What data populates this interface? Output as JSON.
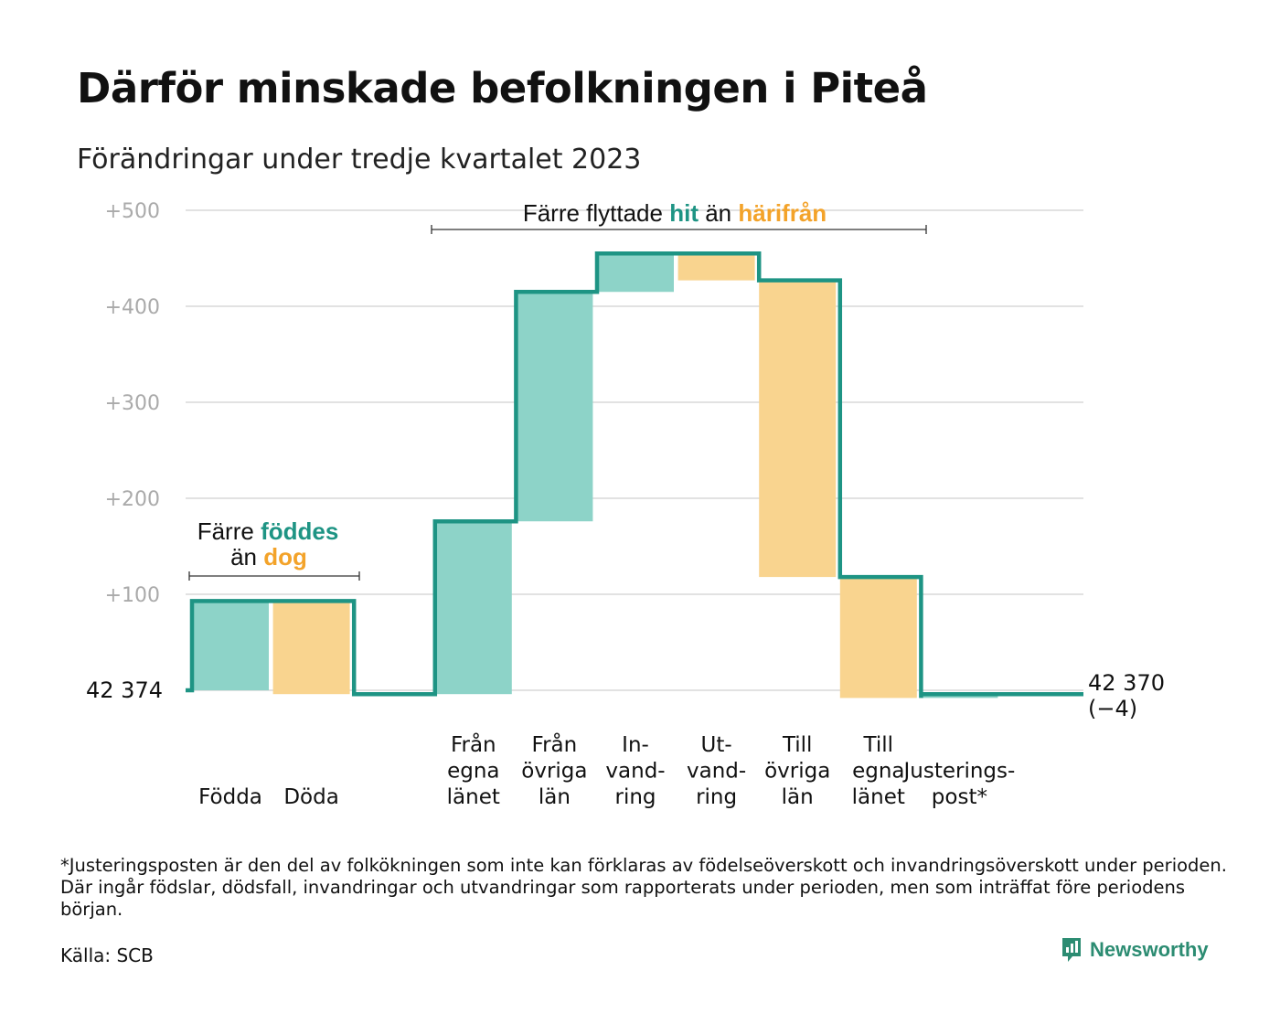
{
  "header": {
    "title": "Därför minskade befolkningen i Piteå",
    "subtitle": "Förändringar under tredje kvartalet 2023"
  },
  "chart_data": {
    "type": "waterfall",
    "base_population": "42 374",
    "end_label_line1": "42 370",
    "end_label_line2": "(−4)",
    "ylim": [
      -15,
      505
    ],
    "y_ticks": [
      {
        "value": 100,
        "label": "+100"
      },
      {
        "value": 200,
        "label": "+200"
      },
      {
        "value": 300,
        "label": "+300"
      },
      {
        "value": 400,
        "label": "+400"
      },
      {
        "value": 500,
        "label": "+500"
      }
    ],
    "steps": [
      {
        "key": "fodda",
        "label": [
          "Födda"
        ],
        "start": 0,
        "end": 93,
        "kind": "increase"
      },
      {
        "key": "doda",
        "label": [
          "Döda"
        ],
        "start": 93,
        "end": -4,
        "kind": "decrease"
      },
      {
        "key": "gap",
        "label": [],
        "start": -4,
        "end": -4,
        "kind": "none"
      },
      {
        "key": "fran-egna-lanet",
        "label": [
          "Från",
          "egna",
          "länet"
        ],
        "start": -4,
        "end": 176,
        "kind": "increase"
      },
      {
        "key": "fran-ovriga-lan",
        "label": [
          "Från",
          "övriga",
          "län"
        ],
        "start": 176,
        "end": 415,
        "kind": "increase"
      },
      {
        "key": "invandring",
        "label": [
          "In-",
          "vand-",
          "ring"
        ],
        "start": 415,
        "end": 455,
        "kind": "increase"
      },
      {
        "key": "utvandring",
        "label": [
          "Ut-",
          "vand-",
          "ring"
        ],
        "start": 455,
        "end": 427,
        "kind": "decrease"
      },
      {
        "key": "till-ovriga-lan",
        "label": [
          "Till",
          "övriga",
          "län"
        ],
        "start": 427,
        "end": 118,
        "kind": "decrease"
      },
      {
        "key": "till-egna-lanet",
        "label": [
          "Till",
          "egna",
          "länet"
        ],
        "start": 118,
        "end": -8,
        "kind": "decrease"
      },
      {
        "key": "justeringspost",
        "label": [
          "Justerings-",
          "post*"
        ],
        "start": -8,
        "end": -4,
        "kind": "increase"
      }
    ],
    "annotation_births": {
      "prefix": "Färre",
      "highlight_a": "föddes",
      "middle": "än",
      "highlight_b": "dog"
    },
    "annotation_migration": {
      "prefix": "Färre flyttade",
      "highlight_a": "hit",
      "middle": "än",
      "highlight_b": "härifrån"
    },
    "colors": {
      "increase_fill": "#8dd3c8",
      "decrease_fill": "#f9d48f",
      "line": "#1e9484",
      "grid": "#e2e2e2",
      "tick_text": "#aaaaaa",
      "highlight_increase": "#1e9484",
      "highlight_decrease": "#f3a32a"
    }
  },
  "footer": {
    "footnote": "*Justeringsposten är den del av folkökningen som inte kan förklaras av födelseöverskott och invandringsöverskott under perioden. Där ingår födslar, dödsfall, invandringar och utvandringar som rapporterats under perioden, men som inträffat före periodens början.",
    "source": "Källa: SCB",
    "brand": "Newsworthy",
    "brand_icon": "newsworthy-logo-icon"
  }
}
